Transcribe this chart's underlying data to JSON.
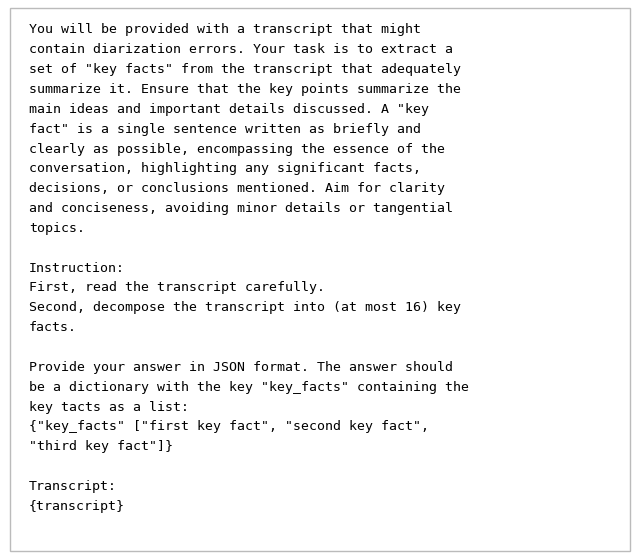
{
  "background_color": "#ffffff",
  "border_color": "#bbbbbb",
  "text_color": "#000000",
  "font_family": "monospace",
  "font_size": 9.5,
  "lines": [
    "You will be provided with a transcript that might",
    "contain diarization errors. Your task is to extract a",
    "set of \"key facts\" from the transcript that adequately",
    "summarize it. Ensure that the key points summarize the",
    "main ideas and important details discussed. A \"key",
    "fact\" is a single sentence written as briefly and",
    "clearly as possible, encompassing the essence of the",
    "conversation, highlighting any significant facts,",
    "decisions, or conclusions mentioned. Aim for clarity",
    "and conciseness, avoiding minor details or tangential",
    "topics.",
    "",
    "Instruction:",
    "First, read the transcript carefully.",
    "Second, decompose the transcript into (at most 16) key",
    "facts.",
    "",
    "Provide your answer in JSON format. The answer should",
    "be a dictionary with the key \"key_facts\" containing the",
    "key tacts as a list:",
    "{\"key_facts\" [\"first key fact\", \"second key fact\",",
    "\"third key fact\"]}",
    "",
    "Transcript:",
    "{transcript}"
  ],
  "fig_width": 6.4,
  "fig_height": 5.59,
  "dpi": 100
}
